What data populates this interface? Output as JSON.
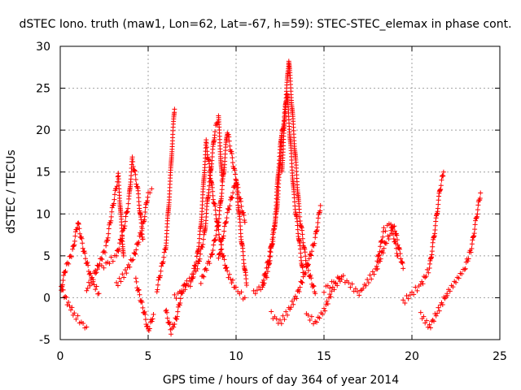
{
  "chart_data": {
    "type": "scatter",
    "title": "dSTEC Iono. truth (maw1, Lon=62, Lat=-67, h=59): STEC-STEC_elemax in phase cont.",
    "xlabel": "GPS time / hours of day 364 of year 2014",
    "ylabel": "dSTEC  / TECUs",
    "xlim": [
      0,
      25
    ],
    "ylim": [
      -5,
      30
    ],
    "xticks": [
      0,
      5,
      10,
      15,
      20,
      25
    ],
    "yticks": [
      -5,
      0,
      5,
      10,
      15,
      20,
      25,
      30
    ],
    "grid": true,
    "marker": "plus",
    "color": "#ff0000",
    "tracks": [
      {
        "x": [
          0.0,
          0.3,
          0.7,
          1.0,
          1.4,
          1.8,
          2.2
        ],
        "y": [
          0.5,
          3.5,
          5.5,
          9.0,
          5.0,
          2.0,
          0.5
        ]
      },
      {
        "x": [
          0.0,
          0.4,
          0.8,
          1.2,
          1.5
        ],
        "y": [
          1.5,
          -0.5,
          -2.0,
          -3.0,
          -3.5
        ]
      },
      {
        "x": [
          1.5,
          2.0,
          2.6,
          3.0,
          3.3,
          3.6
        ],
        "y": [
          1.0,
          3.0,
          6.0,
          11.0,
          14.5,
          5.0
        ]
      },
      {
        "x": [
          2.0,
          2.6,
          3.2,
          3.6,
          3.9,
          4.1,
          4.4,
          4.7
        ],
        "y": [
          3.5,
          4.0,
          5.0,
          8.0,
          11.5,
          16.5,
          13.0,
          7.0
        ]
      },
      {
        "x": [
          3.2,
          3.7,
          4.2,
          4.7,
          5.0,
          5.2
        ],
        "y": [
          1.5,
          3.0,
          5.0,
          8.5,
          12.5,
          13.0
        ]
      },
      {
        "x": [
          4.3,
          4.8,
          5.0,
          5.3
        ],
        "y": [
          2.0,
          -2.0,
          -4.0,
          -2.0
        ]
      },
      {
        "x": [
          5.5,
          6.0,
          6.2,
          6.4,
          6.5
        ],
        "y": [
          1.0,
          6.0,
          12.0,
          19.5,
          22.5
        ]
      },
      {
        "x": [
          6.0,
          6.3,
          6.6,
          6.9,
          7.2
        ],
        "y": [
          -1.5,
          -4.0,
          -2.5,
          0.5,
          2.0
        ]
      },
      {
        "x": [
          6.5,
          7.2,
          7.8,
          8.2,
          8.4,
          8.6,
          8.8,
          9.0,
          9.2
        ],
        "y": [
          0.0,
          1.5,
          3.5,
          7.5,
          12.0,
          16.0,
          20.0,
          21.5,
          14.0
        ]
      },
      {
        "x": [
          7.4,
          7.8,
          8.0,
          8.3,
          8.7,
          9.2,
          9.5,
          10.0,
          10.5
        ],
        "y": [
          1.5,
          5.0,
          8.5,
          18.5,
          12.0,
          5.5,
          3.0,
          1.0,
          0.0
        ]
      },
      {
        "x": [
          8.0,
          8.6,
          9.0,
          9.3,
          9.5,
          10.0,
          10.5
        ],
        "y": [
          2.0,
          5.0,
          9.0,
          15.0,
          20.0,
          14.0,
          9.0
        ]
      },
      {
        "x": [
          9.0,
          9.5,
          10.0,
          10.3,
          10.6
        ],
        "y": [
          4.5,
          10.0,
          14.0,
          7.0,
          1.5
        ]
      },
      {
        "x": [
          11.0,
          11.5,
          11.8,
          12.2,
          12.4,
          12.6
        ],
        "y": [
          0.5,
          1.5,
          3.0,
          8.5,
          15.0,
          20.0
        ]
      },
      {
        "x": [
          11.5,
          11.9,
          12.3,
          12.6,
          12.9,
          13.3,
          13.8
        ],
        "y": [
          1.5,
          5.0,
          10.0,
          19.0,
          24.5,
          12.0,
          3.0
        ]
      },
      {
        "x": [
          12.6,
          12.8,
          13.0,
          13.3,
          13.6,
          14.0,
          14.5
        ],
        "y": [
          15.0,
          22.5,
          28.5,
          19.0,
          10.0,
          4.0,
          0.5
        ]
      },
      {
        "x": [
          12.0,
          12.5,
          13.0,
          13.5,
          14.0,
          14.5,
          14.8
        ],
        "y": [
          -2.0,
          -3.0,
          -1.5,
          0.5,
          3.5,
          7.0,
          11.0
        ]
      },
      {
        "x": [
          14.0,
          14.5,
          15.0,
          15.5,
          16.0
        ],
        "y": [
          -2.0,
          -3.0,
          -1.5,
          1.0,
          2.5
        ]
      },
      {
        "x": [
          15.0,
          16.0,
          17.0,
          18.0,
          18.5,
          19.0,
          19.5
        ],
        "y": [
          1.0,
          2.5,
          0.5,
          3.5,
          6.5,
          8.5,
          3.5
        ]
      },
      {
        "x": [
          18.0,
          18.4,
          18.8,
          19.2
        ],
        "y": [
          4.0,
          8.0,
          9.0,
          5.0
        ]
      },
      {
        "x": [
          19.5,
          20.0,
          20.5,
          21.0,
          21.3,
          21.6,
          21.8
        ],
        "y": [
          -0.5,
          0.5,
          1.5,
          3.5,
          8.0,
          13.0,
          15.0
        ]
      },
      {
        "x": [
          20.5,
          21.0,
          21.5,
          22.0
        ],
        "y": [
          -2.0,
          -3.5,
          -1.5,
          0.5
        ]
      },
      {
        "x": [
          22.0,
          22.5,
          23.0,
          23.4,
          23.7,
          23.9
        ],
        "y": [
          0.5,
          2.0,
          3.5,
          6.0,
          10.0,
          12.5
        ]
      }
    ]
  }
}
